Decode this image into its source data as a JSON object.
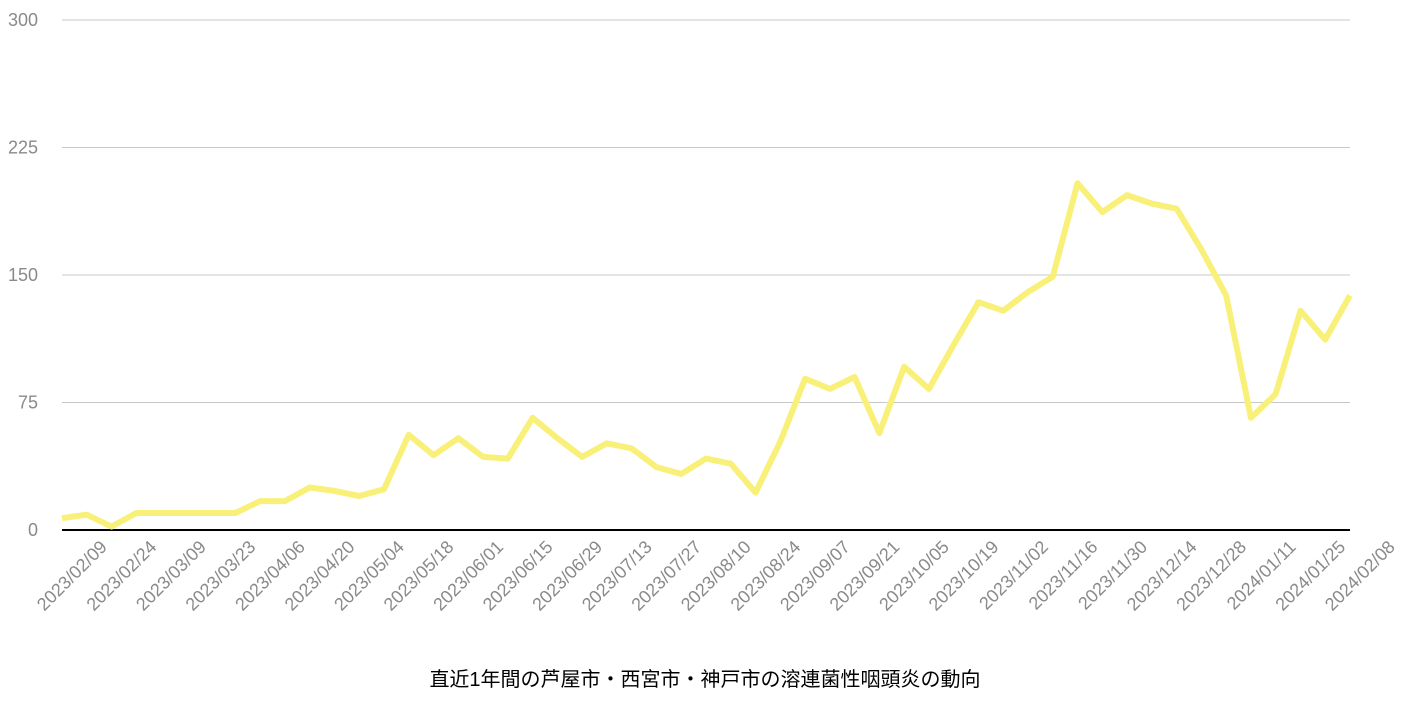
{
  "chart_data": {
    "type": "line",
    "title": "直近1年間の芦屋市・西宮市・神戸市の溶連菌性咽頭炎の動向",
    "categories": [
      "2023/02/09",
      null,
      "2023/02/24",
      null,
      "2023/03/09",
      null,
      "2023/03/23",
      null,
      "2023/04/06",
      null,
      "2023/04/20",
      null,
      "2023/05/04",
      null,
      "2023/05/18",
      null,
      "2023/06/01",
      null,
      "2023/06/15",
      null,
      "2023/06/29",
      null,
      "2023/07/13",
      null,
      "2023/07/27",
      null,
      "2023/08/10",
      null,
      "2023/08/24",
      null,
      "2023/09/07",
      null,
      "2023/09/21",
      null,
      "2023/10/05",
      null,
      "2023/10/19",
      null,
      "2023/11/02",
      null,
      "2023/11/16",
      null,
      "2023/11/30",
      null,
      "2023/12/14",
      null,
      "2023/12/28",
      null,
      "2024/01/11",
      null,
      "2024/01/25",
      null,
      "2024/02/08"
    ],
    "values": [
      7,
      9,
      2,
      10,
      10,
      10,
      10,
      10,
      17,
      17,
      25,
      23,
      20,
      24,
      56,
      44,
      54,
      43,
      42,
      66,
      54,
      43,
      51,
      48,
      37,
      33,
      42,
      39,
      22,
      52,
      89,
      83,
      90,
      57,
      96,
      83,
      109,
      134,
      129,
      140,
      149,
      204,
      187,
      197,
      192,
      189,
      165,
      138,
      66,
      80,
      129,
      112,
      138
    ],
    "color": "#f9f07a",
    "ylim": [
      0,
      300
    ],
    "yticks": [
      0,
      75,
      150,
      225,
      300
    ],
    "grid": true
  }
}
